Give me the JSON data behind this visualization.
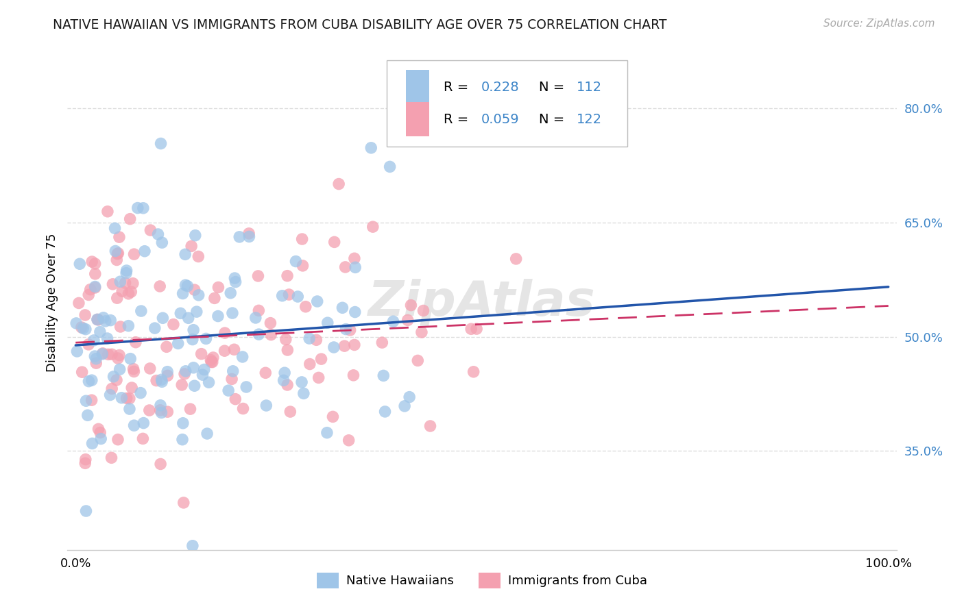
{
  "title": "NATIVE HAWAIIAN VS IMMIGRANTS FROM CUBA DISABILITY AGE OVER 75 CORRELATION CHART",
  "source": "Source: ZipAtlas.com",
  "ylabel": "Disability Age Over 75",
  "yticks_labels": [
    "80.0%",
    "65.0%",
    "50.0%",
    "35.0%"
  ],
  "ytick_vals": [
    0.8,
    0.65,
    0.5,
    0.35
  ],
  "xticks_labels": [
    "0.0%",
    "100.0%"
  ],
  "xtick_vals": [
    0.0,
    1.0
  ],
  "xlim": [
    -0.01,
    1.01
  ],
  "ylim": [
    0.22,
    0.87
  ],
  "legend_blue_label": "Native Hawaiians",
  "legend_pink_label": "Immigrants from Cuba",
  "legend_r_blue": "0.228",
  "legend_n_blue": "112",
  "legend_r_pink": "0.059",
  "legend_n_pink": "122",
  "color_blue": "#9fc5e8",
  "color_pink": "#f4a0b0",
  "color_blue_line": "#2255aa",
  "color_pink_line": "#cc3366",
  "color_ytick": "#3d85c8",
  "color_source": "#aaaaaa",
  "grid_color": "#dddddd",
  "background_color": "#ffffff",
  "watermark_text": "ZipAtlas",
  "watermark_color": "#cccccc",
  "seed_blue": 17,
  "seed_pink": 99,
  "n_blue": 112,
  "n_pink": 122,
  "r_blue": 0.228,
  "r_pink": 0.059
}
